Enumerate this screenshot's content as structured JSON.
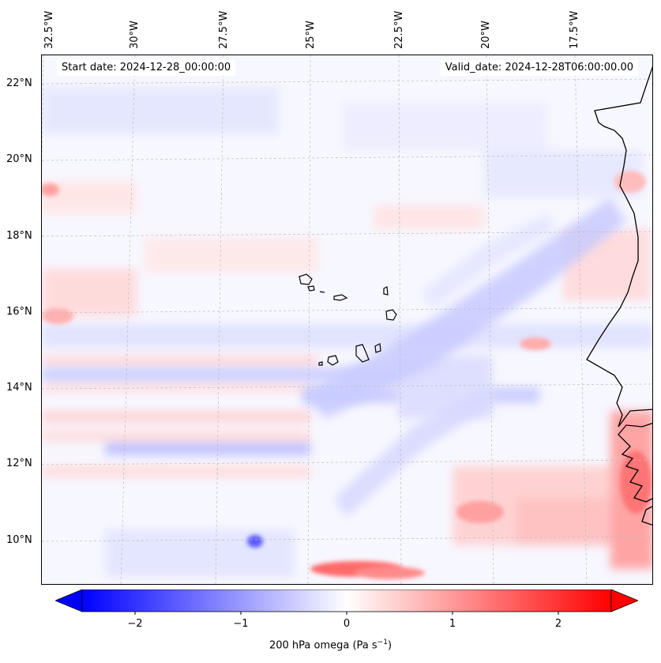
{
  "header": {
    "start_date": "Start date: 2024-12-28_00:00:00",
    "valid_date": "Valid_date: 2024-12-28T06:00:00.00"
  },
  "axes": {
    "lon_labels": [
      "32.5°W",
      "30°W",
      "27.5°W",
      "25°W",
      "22.5°W",
      "20°W",
      "17.5°W"
    ],
    "lat_labels": [
      "22°N",
      "20°N",
      "18°N",
      "16°N",
      "14°N",
      "12°N",
      "10°N"
    ]
  },
  "colorbar": {
    "ticks": [
      "−2",
      "−1",
      "0",
      "1",
      "2"
    ],
    "label": "200 hPa omega (Pa s",
    "label_sup": "−1",
    "label_end": ")",
    "colors": {
      "neg": "#0000ff",
      "mid": "#ffffff",
      "pos": "#ff0000"
    },
    "range": [
      -2.6,
      2.6
    ]
  },
  "map_style": {
    "coastline_color": "#000000",
    "grid_color": "#bbbbbb",
    "background": "#f7f7ff"
  }
}
